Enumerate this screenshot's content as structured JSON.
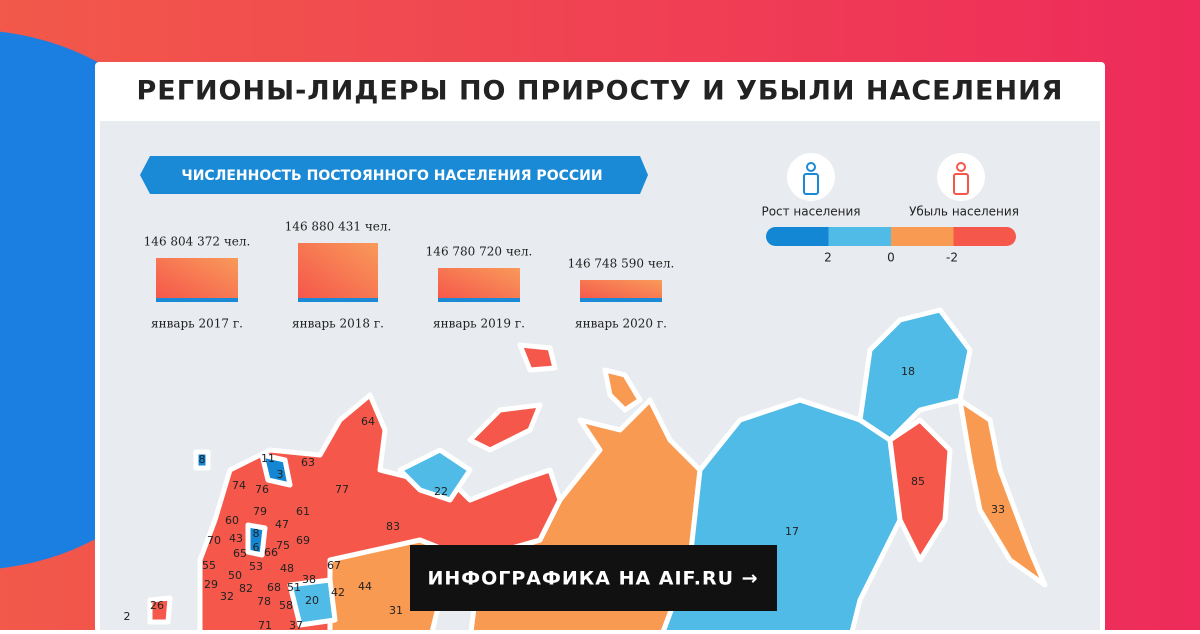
{
  "header": {
    "title": "РЕГИОНЫ-ЛИДЕРЫ ПО ПРИРОСТУ И УБЫЛИ НАСЕЛЕНИЯ"
  },
  "banner": "ЧИСЛЕННОСТЬ ПОСТОЯННОГО НАСЕЛЕНИЯ РОССИИ",
  "population": [
    {
      "label": "146 804 372 чел.",
      "period": "январь 2017 г."
    },
    {
      "label": "146 880 431 чел.",
      "period": "январь 2018 г."
    },
    {
      "label": "146 780 720 чел.",
      "period": "январь 2019 г."
    },
    {
      "label": "146 748 590 чел.",
      "period": "январь 2020 г."
    }
  ],
  "legend": {
    "growth": "Рост населения",
    "decline": "Убыль населения",
    "scale": [
      "2",
      "0",
      "-2"
    ]
  },
  "map": {
    "regions": [
      "64",
      "11",
      "3",
      "63",
      "74",
      "76",
      "77",
      "22",
      "83",
      "79",
      "61",
      "60",
      "47",
      "18",
      "85",
      "33",
      "17",
      "70",
      "43",
      "8",
      "69",
      "75",
      "65",
      "6",
      "66",
      "55",
      "53",
      "48",
      "67",
      "50",
      "38",
      "44",
      "29",
      "82",
      "68",
      "51",
      "42",
      "32",
      "78",
      "58",
      "20",
      "31",
      "26",
      "2",
      "71",
      "37",
      "8"
    ]
  },
  "cta": "ИНФОГРАФИКА НА AIF.RU →"
}
